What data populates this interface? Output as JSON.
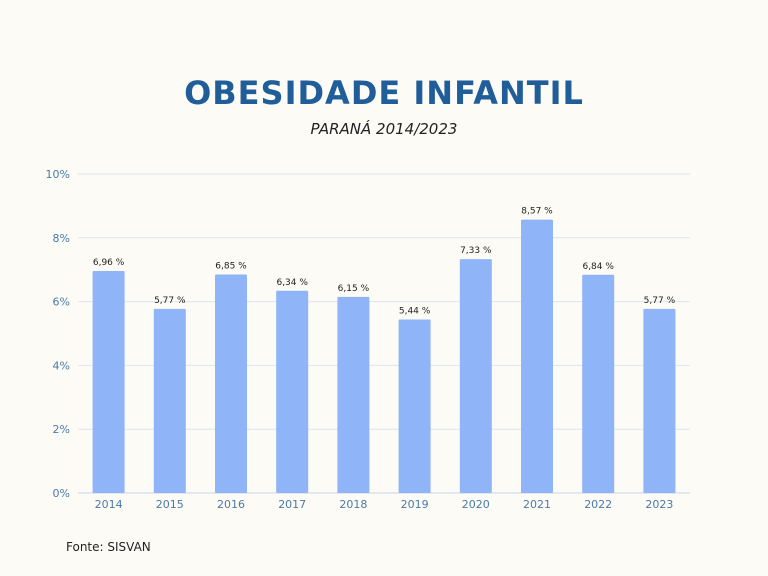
{
  "chart_data": {
    "type": "bar",
    "title": "OBESIDADE INFANTIL",
    "subtitle": "PARANÁ 2014/2023",
    "source": "Fonte: SISVAN",
    "categories": [
      "2014",
      "2015",
      "2016",
      "2017",
      "2018",
      "2019",
      "2020",
      "2021",
      "2022",
      "2023"
    ],
    "values": [
      6.96,
      5.77,
      6.85,
      6.34,
      6.15,
      5.44,
      7.33,
      8.57,
      6.84,
      5.77
    ],
    "data_labels": [
      "6,96 %",
      "5,77 %",
      "6,85 %",
      "6,34 %",
      "6,15 %",
      "5,44 %",
      "7,33 %",
      "8,57 %",
      "6,84 %",
      "5,77 %"
    ],
    "yticks": [
      "0%",
      "2%",
      "4%",
      "6%",
      "8%",
      "10%"
    ],
    "ylim": [
      0,
      10
    ],
    "grid": true,
    "bar_color": "#8fb4f7",
    "title_color": "#1f5e99"
  }
}
